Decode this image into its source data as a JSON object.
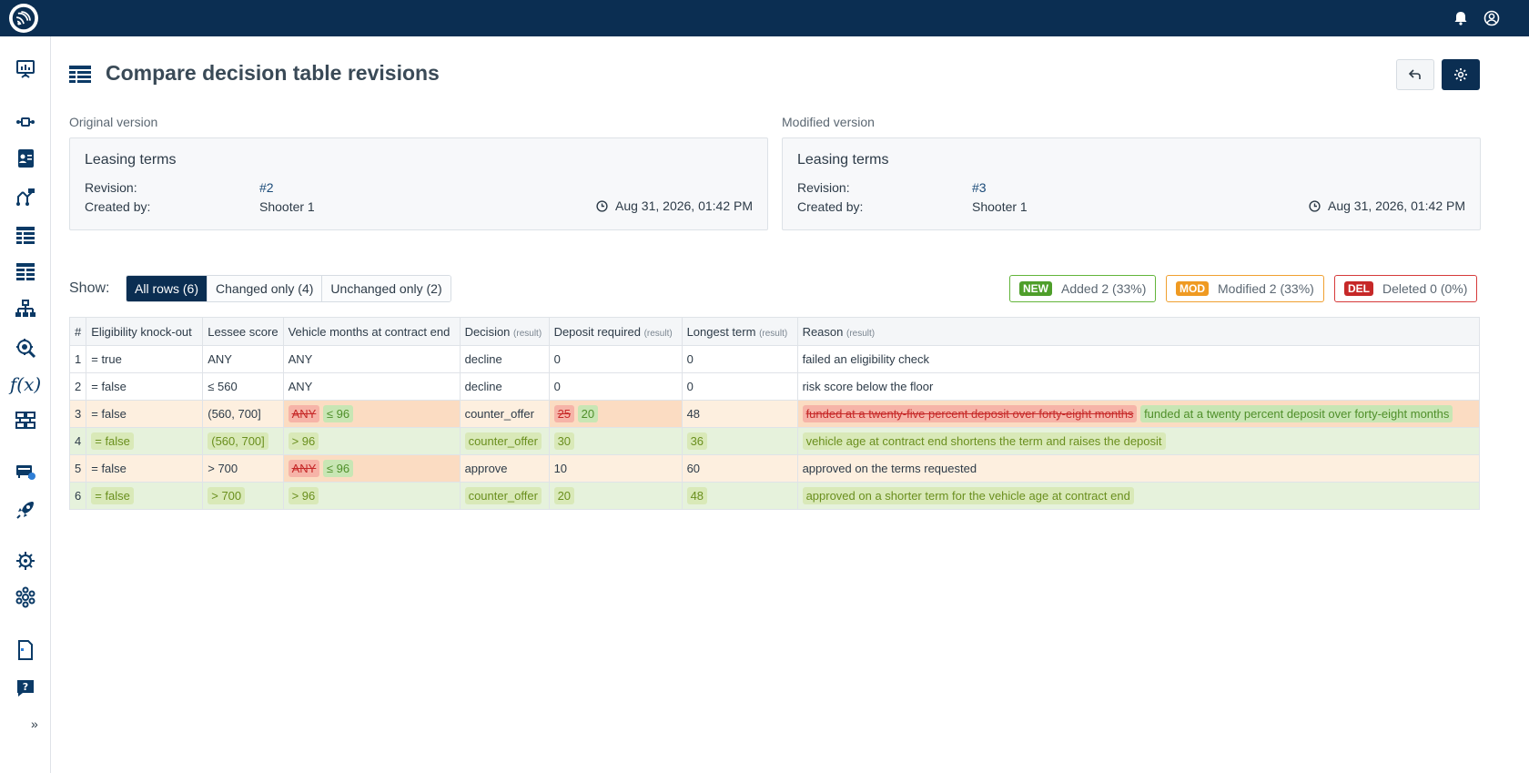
{
  "header": {
    "icons": [
      "logo-icon",
      "bell-icon",
      "user-icon"
    ]
  },
  "sidebar": {
    "items": [
      "presentation-icon",
      "flow-icon",
      "id-card-icon",
      "decision-tree-icon",
      "decision-table-icon",
      "decision-table-2-icon",
      "hierarchy-icon",
      "search-cog-icon",
      "function-icon",
      "server-icon",
      "deploy-icon",
      "rocket-icon",
      "virus-icon",
      "network-icon",
      "document-icon",
      "help-icon"
    ],
    "function_glyph": "f(x)",
    "expand_label": "»"
  },
  "page": {
    "title": "Compare decision table revisions"
  },
  "original": {
    "section_label": "Original version",
    "name": "Leasing terms",
    "revision_label": "Revision:",
    "revision": "#2",
    "created_label": "Created by:",
    "created_by": "Shooter 1",
    "date": "Aug 31, 2026, 01:42 PM"
  },
  "modified": {
    "section_label": "Modified version",
    "name": "Leasing terms",
    "revision_label": "Revision:",
    "revision": "#3",
    "created_label": "Created by:",
    "created_by": "Shooter 1",
    "date": "Aug 31, 2026, 01:42 PM"
  },
  "filter": {
    "label": "Show:",
    "options": [
      "All rows (6)",
      "Changed only (4)",
      "Unchanged only (2)"
    ],
    "active_index": 0
  },
  "stats": {
    "new": {
      "tag": "NEW",
      "text": "Added 2 (33%)",
      "color": "#4e9e2a"
    },
    "mod": {
      "tag": "MOD",
      "text": "Modified 2 (33%)",
      "color": "#ef9a22"
    },
    "del": {
      "tag": "DEL",
      "text": "Deleted 0 (0%)",
      "color": "#c62828"
    }
  },
  "table": {
    "headers": [
      {
        "label": "#",
        "suffix": ""
      },
      {
        "label": "Eligibility knock-out",
        "suffix": ""
      },
      {
        "label": "Lessee score",
        "suffix": ""
      },
      {
        "label": "Vehicle months at contract end",
        "suffix": ""
      },
      {
        "label": "Decision",
        "suffix": "(result)"
      },
      {
        "label": "Deposit required",
        "suffix": "(result)"
      },
      {
        "label": "Longest term",
        "suffix": "(result)"
      },
      {
        "label": "Reason",
        "suffix": "(result)"
      }
    ],
    "rows": [
      {
        "status": "same",
        "cells": [
          {
            "t": "1"
          },
          {
            "t": "= true"
          },
          {
            "t": "ANY"
          },
          {
            "t": "ANY"
          },
          {
            "t": "decline"
          },
          {
            "t": "0"
          },
          {
            "t": "0"
          },
          {
            "t": "failed an eligibility check"
          }
        ]
      },
      {
        "status": "same",
        "cells": [
          {
            "t": "2"
          },
          {
            "t": "= false"
          },
          {
            "t": "≤ 560"
          },
          {
            "t": "ANY"
          },
          {
            "t": "decline"
          },
          {
            "t": "0"
          },
          {
            "t": "0"
          },
          {
            "t": "risk score below the floor"
          }
        ]
      },
      {
        "status": "mod",
        "cells": [
          {
            "t": "3"
          },
          {
            "t": "= false"
          },
          {
            "t": "(560, 700]"
          },
          {
            "old": "ANY",
            "new": "≤ 96"
          },
          {
            "t": "counter_offer"
          },
          {
            "old": "25",
            "new": "20"
          },
          {
            "t": "48"
          },
          {
            "old": "funded at a twenty-five percent deposit over forty-eight months",
            "new": "funded at a twenty percent deposit over forty-eight months"
          }
        ]
      },
      {
        "status": "new",
        "cells": [
          {
            "t": "4"
          },
          {
            "add": "= false"
          },
          {
            "add": "(560, 700]"
          },
          {
            "add": "> 96"
          },
          {
            "add": "counter_offer"
          },
          {
            "add": "30"
          },
          {
            "add": "36"
          },
          {
            "add": "vehicle age at contract end shortens the term and raises the deposit"
          }
        ]
      },
      {
        "status": "mod",
        "cells": [
          {
            "t": "5"
          },
          {
            "t": "= false"
          },
          {
            "t": "> 700"
          },
          {
            "old": "ANY",
            "new": "≤ 96"
          },
          {
            "t": "approve"
          },
          {
            "t": "10"
          },
          {
            "t": "60"
          },
          {
            "t": "approved on the terms requested"
          }
        ]
      },
      {
        "status": "new",
        "cells": [
          {
            "t": "6"
          },
          {
            "add": "= false"
          },
          {
            "add": "> 700"
          },
          {
            "add": "> 96"
          },
          {
            "add": "counter_offer"
          },
          {
            "add": "20"
          },
          {
            "add": "48"
          },
          {
            "add": "approved on a shorter term for the vehicle age at contract end"
          }
        ]
      }
    ]
  }
}
